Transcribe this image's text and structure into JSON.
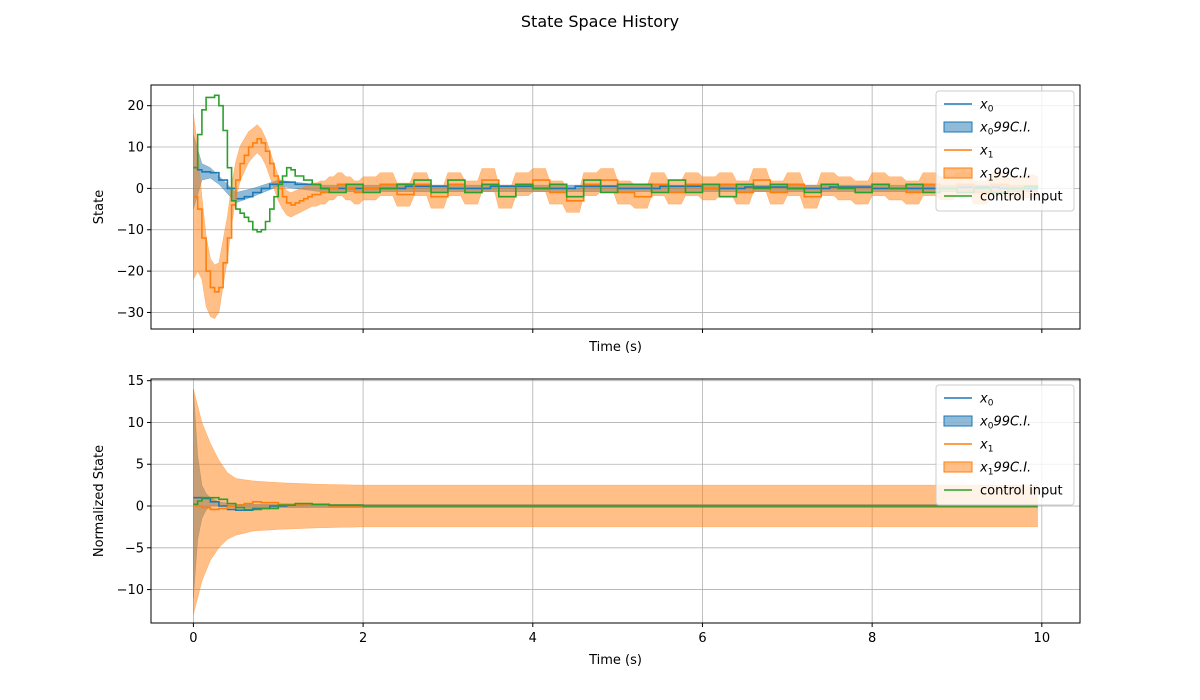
{
  "title": "State Space History",
  "colors": {
    "x0": "#1f77b4",
    "x1": "#ff7f0e",
    "u": "#2ca02c",
    "grid": "#b0b0b0"
  },
  "legend": {
    "placement": "upper-right",
    "entries": [
      {
        "name": "x0",
        "label": "x",
        "sub": "0",
        "suffix": "",
        "kind": "line",
        "color": "#1f77b4"
      },
      {
        "name": "x0-ci",
        "label": "x",
        "sub": "0",
        "suffix": "99C.I.",
        "kind": "patch",
        "color": "#1f77b4"
      },
      {
        "name": "x1",
        "label": "x",
        "sub": "1",
        "suffix": "",
        "kind": "line",
        "color": "#ff7f0e"
      },
      {
        "name": "x1-ci",
        "label": "x",
        "sub": "1",
        "suffix": "99C.I.",
        "kind": "patch",
        "color": "#ff7f0e"
      },
      {
        "name": "control-input",
        "label": "control input",
        "sub": "",
        "suffix": "",
        "kind": "line",
        "color": "#2ca02c"
      }
    ]
  },
  "chart_data": [
    {
      "type": "line",
      "title": "",
      "xlabel": "Time (s)",
      "ylabel": "State",
      "xlim": [
        -0.5,
        10.45
      ],
      "ylim": [
        -34.0,
        25.0
      ],
      "xticks": [
        0,
        2,
        4,
        6,
        8,
        10
      ],
      "yticks": [
        -30,
        -20,
        -10,
        0,
        10,
        20
      ],
      "show_x_tick_labels": false,
      "grid": true,
      "dt": 0.05,
      "series": [
        {
          "name": "x0",
          "color": "#1f77b4",
          "step": true,
          "t": [
            0,
            0.05,
            0.1,
            0.2,
            0.3,
            0.4,
            0.5,
            0.6,
            0.7,
            0.8,
            0.9,
            1.0,
            1.2,
            1.5,
            2.0,
            2.5,
            3.0,
            3.5,
            4.0,
            4.5,
            5.0,
            5.5,
            6.0,
            6.5,
            7.0,
            7.5,
            8.0,
            8.5,
            9.0,
            9.5,
            9.95
          ],
          "y": [
            5,
            4.5,
            4,
            3.8,
            2,
            0,
            -2.5,
            -2,
            -1,
            0,
            1,
            1.5,
            1,
            0,
            0,
            0.5,
            0,
            0.5,
            0,
            0.5,
            0,
            0.5,
            0,
            0.3,
            0,
            0.3,
            0,
            0,
            0.3,
            0,
            0
          ]
        },
        {
          "name": "x1",
          "color": "#ff7f0e",
          "step": true,
          "t": [
            0,
            0.05,
            0.1,
            0.15,
            0.2,
            0.25,
            0.3,
            0.35,
            0.4,
            0.45,
            0.5,
            0.55,
            0.6,
            0.65,
            0.7,
            0.75,
            0.8,
            0.85,
            0.9,
            0.95,
            1.0,
            1.05,
            1.1,
            1.15,
            1.2,
            1.25,
            1.3,
            1.35,
            1.4,
            1.5,
            1.6,
            1.7,
            1.8,
            1.9,
            2.0,
            2.2,
            2.4,
            2.6,
            2.8,
            3.0,
            3.2,
            3.4,
            3.6,
            3.8,
            4.0,
            4.2,
            4.4,
            4.6,
            4.8,
            5.0,
            5.2,
            5.4,
            5.6,
            5.8,
            6.0,
            6.2,
            6.4,
            6.6,
            6.8,
            7.0,
            7.2,
            7.4,
            7.6,
            7.8,
            8.0,
            8.2,
            8.4,
            8.6,
            8.8,
            9.0,
            9.2,
            9.4,
            9.6,
            9.8,
            9.95
          ],
          "y": [
            -2,
            -5,
            -12,
            -20,
            -24,
            -25,
            -24,
            -18,
            -12,
            -4,
            2,
            6,
            8,
            10,
            11,
            12,
            11,
            9,
            6,
            3,
            0,
            -2,
            -3.5,
            -4,
            -3.5,
            -3,
            -2.5,
            -2,
            -1.5,
            -1,
            0,
            1,
            0,
            -1,
            0,
            1,
            -1.5,
            1,
            -2,
            1,
            -1,
            2,
            -2,
            1,
            2,
            -1,
            -3,
            1,
            2,
            -1,
            -2,
            1,
            -1,
            1,
            0,
            1,
            -1,
            2,
            -1,
            1,
            -2,
            1,
            0,
            -1,
            1,
            0,
            -1,
            1,
            0,
            1,
            -1,
            1,
            0,
            0.5,
            0
          ]
        },
        {
          "name": "control input",
          "color": "#2ca02c",
          "step": true,
          "t": [
            0,
            0.05,
            0.1,
            0.15,
            0.2,
            0.25,
            0.3,
            0.35,
            0.4,
            0.45,
            0.5,
            0.55,
            0.6,
            0.65,
            0.7,
            0.75,
            0.8,
            0.85,
            0.9,
            0.95,
            1.0,
            1.05,
            1.1,
            1.15,
            1.2,
            1.3,
            1.4,
            1.5,
            1.6,
            1.8,
            2.0,
            2.2,
            2.4,
            2.6,
            2.8,
            3.0,
            3.2,
            3.4,
            3.6,
            3.8,
            4.0,
            4.2,
            4.4,
            4.6,
            4.8,
            5.0,
            5.2,
            5.4,
            5.6,
            5.8,
            6.0,
            6.2,
            6.4,
            6.6,
            6.8,
            7.0,
            7.2,
            7.4,
            7.6,
            7.8,
            8.0,
            8.2,
            8.4,
            8.6,
            8.8,
            9.0,
            9.2,
            9.4,
            9.6,
            9.8,
            9.95
          ],
          "y": [
            5,
            13,
            19,
            22,
            22,
            22.5,
            20,
            14,
            5,
            -3,
            -5,
            -6,
            -7,
            -8,
            -10,
            -10.5,
            -10,
            -8,
            -5,
            -2,
            1,
            3,
            5,
            4.5,
            3,
            2,
            1,
            0,
            -1,
            1,
            -1,
            0,
            1,
            2,
            -1,
            2,
            -1,
            1,
            -2,
            1,
            0,
            1,
            -2,
            2,
            -1,
            1,
            1,
            -1,
            2,
            -1,
            1,
            -2,
            1,
            0,
            1,
            0,
            -1,
            1,
            0,
            -1,
            1,
            0,
            1,
            -1,
            0,
            -1,
            0,
            -1,
            0,
            0.5,
            0
          ]
        }
      ],
      "bands": [
        {
          "name": "x0 99C.I.",
          "color": "#1f77b4",
          "t": [
            0,
            0.1,
            0.2,
            0.3,
            0.5,
            0.7,
            1.0,
            1.5,
            2.0,
            3.0,
            4.0,
            5.0,
            6.0,
            7.0,
            8.0,
            9.0,
            9.95
          ],
          "lo": [
            -5,
            2,
            2.5,
            1,
            -3.5,
            -2,
            0.5,
            -0.8,
            -0.8,
            -0.8,
            -0.8,
            -0.8,
            -0.8,
            -0.8,
            -0.8,
            -0.8,
            -0.8
          ],
          "hi": [
            13,
            6,
            5,
            3,
            -1,
            0,
            2,
            0.8,
            0.8,
            0.8,
            0.8,
            0.8,
            0.8,
            0.8,
            0.8,
            0.8,
            0.8
          ]
        },
        {
          "name": "x1 99C.I.",
          "color": "#ff7f0e",
          "center_series": "x1",
          "halfwidth_t": [
            0,
            0.1,
            0.2,
            0.3,
            0.5,
            0.7,
            1.0,
            1.5,
            2.0,
            9.95
          ],
          "halfwidth": [
            20,
            10,
            7,
            6,
            4.5,
            3.5,
            3,
            2.8,
            2.8,
            2.8
          ]
        }
      ]
    },
    {
      "type": "line",
      "title": "",
      "xlabel": "Time (s)",
      "ylabel": "Normalized State",
      "xlim": [
        -0.5,
        10.45
      ],
      "ylim": [
        -14.0,
        15.2
      ],
      "xticks": [
        0,
        2,
        4,
        6,
        8,
        10
      ],
      "yticks": [
        -10,
        -5,
        0,
        5,
        10,
        15
      ],
      "show_x_tick_labels": true,
      "grid": true,
      "series": [
        {
          "name": "x0",
          "color": "#1f77b4",
          "step": true,
          "t": [
            0,
            0.1,
            0.2,
            0.3,
            0.4,
            0.5,
            0.7,
            0.9,
            1.1,
            1.3,
            1.6,
            2.0,
            9.95
          ],
          "y": [
            1,
            0.9,
            0.5,
            0,
            -0.4,
            -0.5,
            -0.3,
            0,
            0.2,
            0.1,
            0,
            0,
            0
          ]
        },
        {
          "name": "x1",
          "color": "#ff7f0e",
          "step": true,
          "t": [
            0,
            0.1,
            0.2,
            0.3,
            0.4,
            0.5,
            0.6,
            0.7,
            0.8,
            1.0,
            1.3,
            1.6,
            2.0,
            9.95
          ],
          "y": [
            0,
            -0.2,
            -0.4,
            -0.3,
            -0.1,
            0.1,
            0.3,
            0.5,
            0.4,
            0.2,
            0.1,
            0,
            0,
            0
          ]
        },
        {
          "name": "control input",
          "color": "#2ca02c",
          "step": true,
          "t": [
            0,
            0.05,
            0.1,
            0.2,
            0.3,
            0.4,
            0.5,
            0.6,
            0.8,
            1.0,
            1.2,
            1.4,
            1.6,
            2.0,
            9.95
          ],
          "y": [
            0.2,
            0.6,
            1.0,
            1.0,
            0.8,
            0.3,
            -0.2,
            -0.4,
            -0.3,
            0.1,
            0.3,
            0.2,
            0.1,
            0,
            0
          ]
        }
      ],
      "bands": [
        {
          "name": "x0 99C.I.",
          "color": "#1f77b4",
          "t": [
            0,
            0.05,
            0.1,
            0.15,
            0.2,
            0.3,
            0.5,
            9.95
          ],
          "lo": [
            -11,
            -4,
            -1.5,
            -0.5,
            0,
            0,
            -0.2,
            -0.2
          ],
          "hi": [
            14,
            6,
            2.5,
            1.5,
            1,
            0.5,
            0.2,
            0.2
          ]
        },
        {
          "name": "x1 99C.I.",
          "color": "#ff7f0e",
          "t": [
            0,
            0.1,
            0.2,
            0.3,
            0.4,
            0.5,
            0.7,
            1.0,
            1.5,
            2.0,
            9.95
          ],
          "lo": [
            -13,
            -9,
            -6.5,
            -5,
            -4,
            -3.5,
            -3,
            -2.8,
            -2.6,
            -2.5,
            -2.5
          ],
          "hi": [
            14,
            10,
            7.5,
            5.5,
            4,
            3.3,
            3,
            2.8,
            2.6,
            2.5,
            2.5
          ]
        }
      ]
    }
  ]
}
